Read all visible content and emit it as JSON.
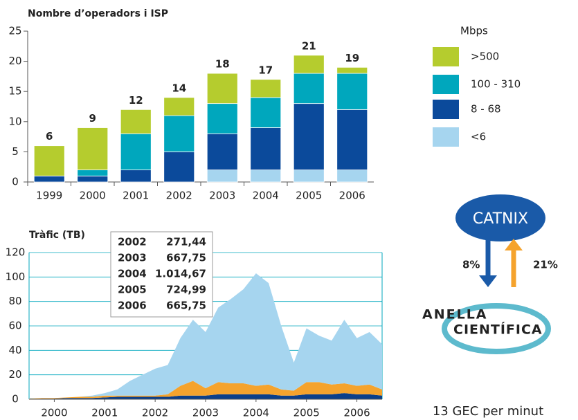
{
  "chart_data": [
    {
      "type": "stacked_bar",
      "title": "Nombre d’operadors i ISP",
      "categories": [
        "1999",
        "2000",
        "2001",
        "2002",
        "2003",
        "2004",
        "2005",
        "2006"
      ],
      "series": [
        {
          "name": "<6",
          "color": "#a6d5ef",
          "values": [
            0,
            0,
            0,
            0,
            2,
            2,
            2,
            2
          ]
        },
        {
          "name": "8 - 68",
          "color": "#0b4a9b",
          "values": [
            1,
            1,
            2,
            5,
            6,
            7,
            11,
            10
          ]
        },
        {
          "name": "100 - 310",
          "color": "#00a7bd",
          "values": [
            0,
            1,
            6,
            6,
            5,
            5,
            5,
            6
          ]
        },
        {
          "name": ">500",
          "color": "#b5cc2e",
          "values": [
            5,
            7,
            4,
            3,
            5,
            3,
            3,
            1
          ]
        }
      ],
      "totals": [
        6,
        9,
        12,
        14,
        18,
        17,
        21,
        19
      ],
      "legend_title": "Mbps",
      "ylim": [
        0,
        25
      ],
      "yticks": [
        0,
        5,
        10,
        15,
        20,
        25
      ]
    },
    {
      "type": "stacked_area",
      "title": "Tràfic (TB)",
      "x": [
        2000,
        2000.25,
        2000.5,
        2000.75,
        2001,
        2001.25,
        2001.5,
        2001.75,
        2002,
        2002.25,
        2002.5,
        2002.75,
        2003,
        2003.25,
        2003.5,
        2003.75,
        2004,
        2004.25,
        2004.5,
        2004.75,
        2005,
        2005.25,
        2005.5,
        2005.75,
        2006,
        2006.25,
        2006.5,
        2006.75,
        2007
      ],
      "series": [
        {
          "color": "#0b3f8a",
          "values": [
            0,
            0.5,
            0.5,
            1,
            1,
            1,
            1.5,
            2,
            2,
            2,
            2,
            2,
            3,
            3,
            3,
            4,
            4,
            4,
            4,
            4,
            3,
            3,
            4,
            4,
            4,
            5,
            4,
            4,
            3
          ]
        },
        {
          "color": "#f5a32d",
          "values": [
            0.5,
            0.5,
            0.5,
            0.5,
            1,
            1,
            1.5,
            1,
            1,
            1,
            1,
            2,
            8,
            12,
            6,
            10,
            9,
            9,
            7,
            8,
            5,
            4,
            10,
            10,
            8,
            8,
            7,
            8,
            5
          ]
        },
        {
          "color": "#a6d5ef",
          "values": [
            0.5,
            0,
            0,
            0,
            0,
            1,
            2,
            5,
            12,
            17,
            22,
            24,
            39,
            50,
            46,
            61,
            69,
            77,
            92,
            83,
            52,
            23,
            44,
            38,
            36,
            52,
            39,
            43,
            37
          ]
        }
      ],
      "xlim": [
        2000,
        2007
      ],
      "xticks": [
        {
          "value": 2000.5,
          "label": "2000"
        },
        {
          "value": 2001.5,
          "label": "2001"
        },
        {
          "value": 2002.5,
          "label": "2002"
        },
        {
          "value": 2003.5,
          "label": "2003"
        },
        {
          "value": 2004.5,
          "label": "2004"
        },
        {
          "value": 2005.5,
          "label": "2005"
        },
        {
          "value": 2006.5,
          "label": "2006"
        }
      ],
      "ylim": [
        0,
        120
      ],
      "yticks": [
        0,
        20,
        40,
        60,
        80,
        100,
        120
      ],
      "table": [
        [
          "2002",
          "271,44"
        ],
        [
          "2003",
          "667,75"
        ],
        [
          "2004",
          "1.014,67"
        ],
        [
          "2005",
          "724,99"
        ],
        [
          "2006",
          "665,75"
        ]
      ]
    }
  ],
  "diagram": {
    "top": "CATNIX",
    "down": "8%",
    "up": "21%",
    "bottom_1": "ANELLA",
    "bottom_2": "CIENTÍFICA",
    "caption": "13 GEC per minut"
  }
}
